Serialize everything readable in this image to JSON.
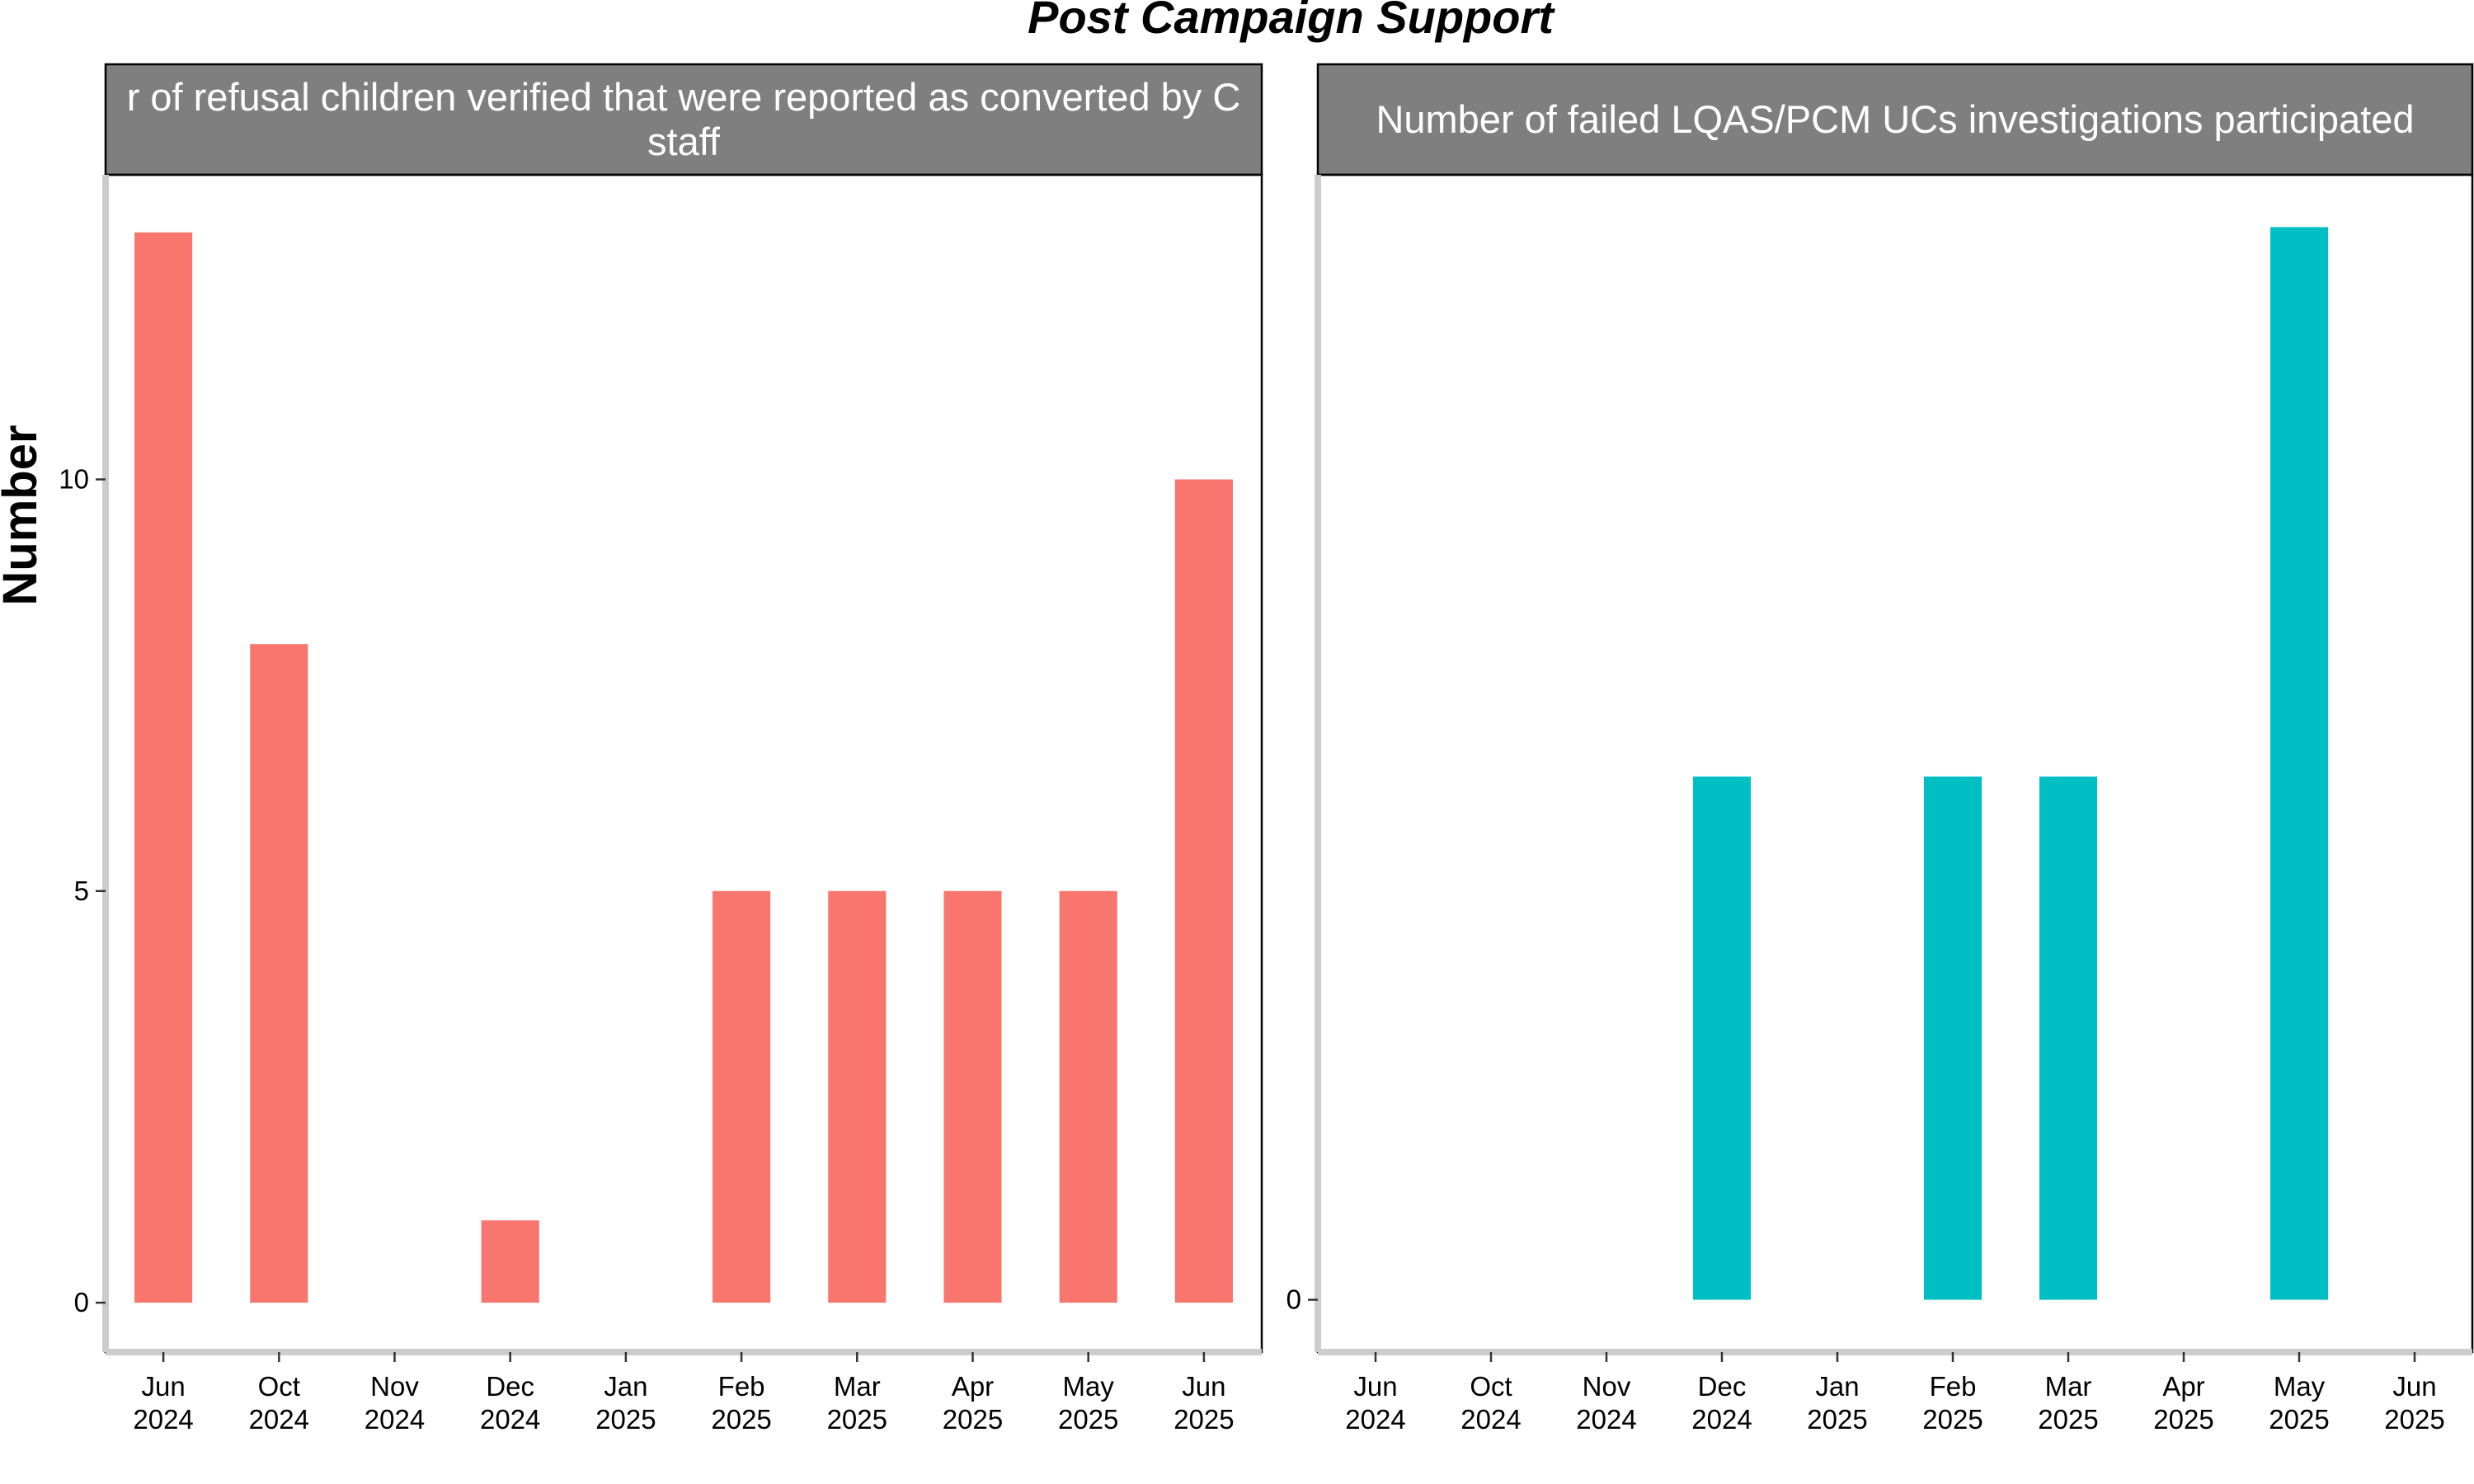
{
  "chart_data": {
    "type": "bar",
    "title": "Post Campaign Support",
    "ylabel": "Number",
    "grid": false,
    "categories": [
      "Jun\n2024",
      "Oct\n2024",
      "Nov\n2024",
      "Dec\n2024",
      "Jan\n2025",
      "Feb\n2025",
      "Mar\n2025",
      "Apr\n2025",
      "May\n2025",
      "Jun\n2025"
    ],
    "panels": [
      {
        "strip_lines": [
          "r of refusal children verified that were reported as converted by C",
          "staff"
        ],
        "color": "#F8766D",
        "ylim": [
          -0.6,
          13.7
        ],
        "yticks": [
          0,
          5,
          10
        ],
        "values": [
          13,
          8,
          null,
          1,
          null,
          5,
          5,
          5,
          5,
          10
        ]
      },
      {
        "strip_lines": [
          "Number of failed LQAS/PCM UCs investigations participated"
        ],
        "color": "#00BFC4",
        "ylim": [
          -0.04,
          0.86
        ],
        "yticks": [
          0
        ],
        "values": [
          null,
          null,
          null,
          0.4,
          null,
          0.4,
          0.4,
          null,
          0.82,
          null
        ]
      }
    ]
  }
}
